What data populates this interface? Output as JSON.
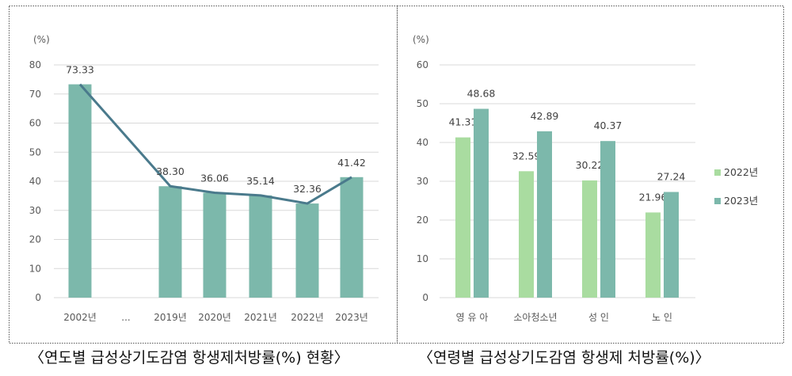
{
  "chart_data": [
    {
      "type": "bar",
      "title": "〈연도별 급성상기도감염 항생제처방률(%) 현황〉",
      "ylabel": "(%)",
      "ylim": [
        0,
        80
      ],
      "yticks": [
        0,
        10,
        20,
        30,
        40,
        50,
        60,
        70,
        80
      ],
      "categories": [
        "2002년",
        "...",
        "2019년",
        "2020년",
        "2021년",
        "2022년",
        "2023년"
      ],
      "values": [
        73.33,
        null,
        38.3,
        36.06,
        35.14,
        32.36,
        41.42
      ],
      "labels": [
        "73.33",
        "",
        "38.30",
        "36.06",
        "35.14",
        "32.36",
        "41.42"
      ],
      "overlay_line": true,
      "colors": {
        "bar": "#7cb8ab",
        "line": "#4a7a8c"
      },
      "grid": true
    },
    {
      "type": "bar",
      "title": "〈연령별 급성상기도감염 항생제 처방률(%)〉",
      "ylabel": "(%)",
      "ylim": [
        0,
        60
      ],
      "yticks": [
        0,
        10,
        20,
        30,
        40,
        50,
        60
      ],
      "categories": [
        "영 유 아",
        "소아청소년",
        "성 인",
        "노 인"
      ],
      "series": [
        {
          "name": "2022년",
          "values": [
            41.31,
            32.59,
            30.22,
            21.96
          ],
          "color": "#a9dca0"
        },
        {
          "name": "2023년",
          "values": [
            48.68,
            42.89,
            40.37,
            27.24
          ],
          "color": "#7cb8ab"
        }
      ],
      "legend": "right",
      "grid": true
    }
  ]
}
